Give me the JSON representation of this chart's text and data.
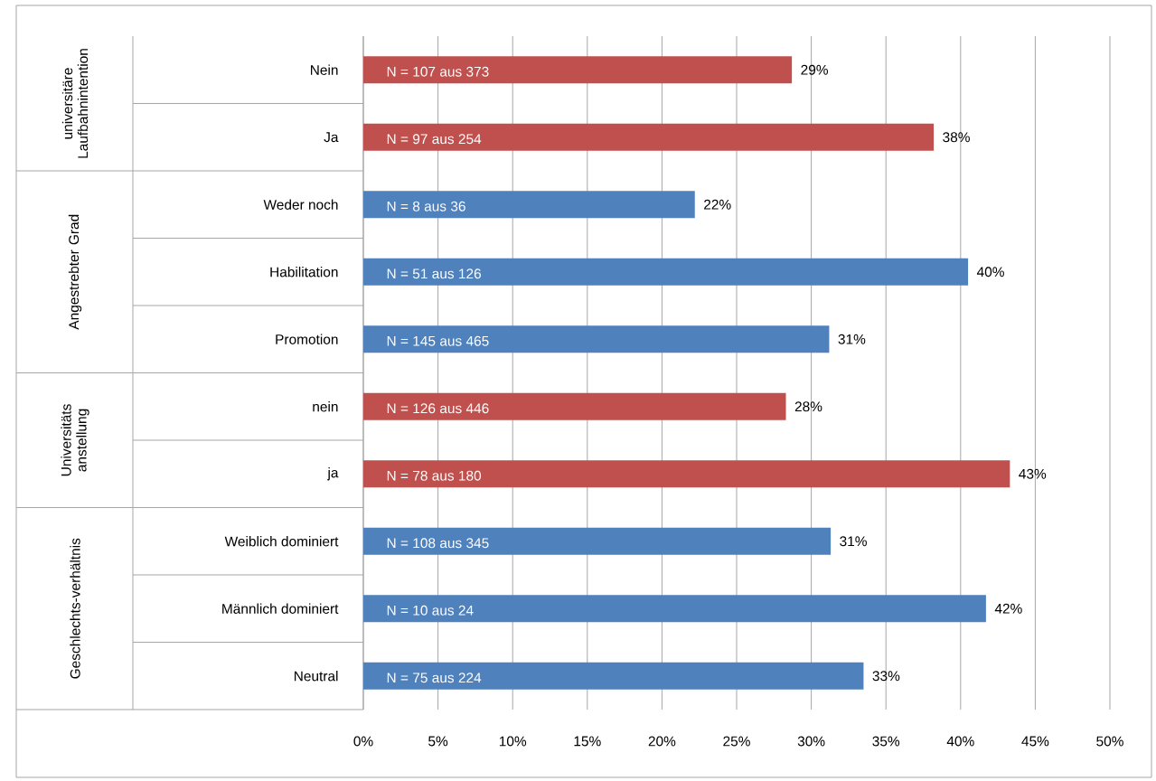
{
  "chart_data": {
    "type": "bar",
    "orientation": "horizontal",
    "categories": [
      "Nein",
      "Ja",
      "Weder noch",
      "Habilitation",
      "Promotion",
      "nein",
      "ja",
      "Weiblich dominiert",
      "Männlich dominiert",
      "Neutral"
    ],
    "values": [
      28.7,
      38.2,
      22.2,
      40.5,
      31.2,
      28.3,
      43.3,
      31.3,
      41.7,
      33.5
    ],
    "colors": [
      "#c0504d",
      "#c0504d",
      "#4f81bd",
      "#4f81bd",
      "#4f81bd",
      "#c0504d",
      "#c0504d",
      "#4f81bd",
      "#4f81bd",
      "#4f81bd"
    ],
    "value_labels": [
      "29%",
      "38%",
      "22%",
      "40%",
      "31%",
      "28%",
      "43%",
      "31%",
      "42%",
      "33%"
    ],
    "xlim": [
      0,
      50
    ],
    "xticks": [
      {
        "value": 0,
        "label": "0%"
      },
      {
        "value": 5,
        "label": "5%"
      },
      {
        "value": 10,
        "label": "10%"
      },
      {
        "value": 15,
        "label": "15%"
      },
      {
        "value": 20,
        "label": "20%"
      },
      {
        "value": 25,
        "label": "25%"
      },
      {
        "value": 30,
        "label": "30%"
      },
      {
        "value": 35,
        "label": "35%"
      },
      {
        "value": 40,
        "label": "40%"
      },
      {
        "value": 45,
        "label": "45%"
      },
      {
        "value": 50,
        "label": "50%"
      }
    ],
    "grid": "x",
    "annotations": [
      "N = 107 aus 373",
      "N = 97 aus 254",
      "N = 8 aus 36",
      "N = 51 aus 126",
      "N = 145 aus 465",
      "N = 126 aus 446",
      "N = 78 aus 180",
      "N = 108 aus 345",
      "N = 10 aus 24",
      "N = 75 aus 224",
      "universitäre Laufbahnintention",
      "Angestrebter Grad",
      "Universitäts anstellung",
      "Geschlechts-verhältnis"
    ]
  }
}
